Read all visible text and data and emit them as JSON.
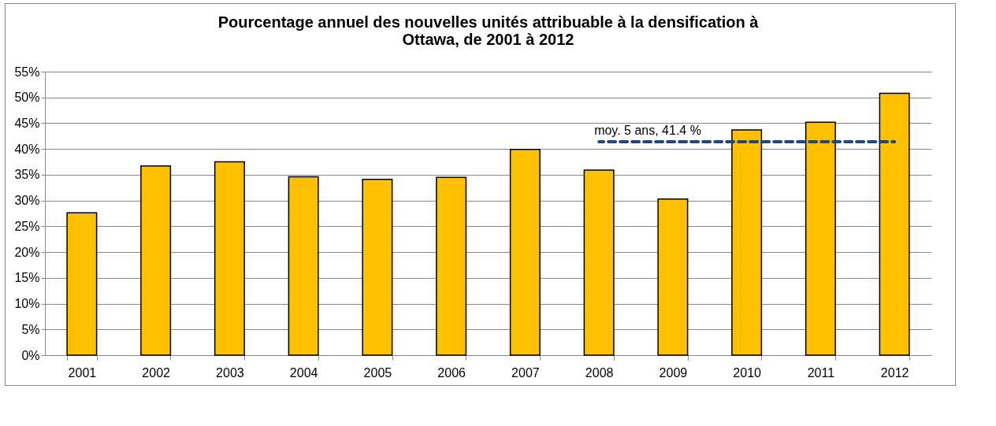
{
  "chart_data": {
    "type": "bar",
    "title": [
      "Pourcentage annuel des nouvelles unités attribuable à la densification à",
      "Ottawa, de 2001 à 2012"
    ],
    "categories": [
      "2001",
      "2002",
      "2003",
      "2004",
      "2005",
      "2006",
      "2007",
      "2008",
      "2009",
      "2010",
      "2011",
      "2012"
    ],
    "series": [
      {
        "color": "#ffc000",
        "values": [
          27.6,
          36.7,
          37.5,
          34.6,
          34.1,
          34.5,
          39.9,
          35.9,
          30.3,
          43.7,
          45.2,
          50.8
        ]
      },
      {
        "type": "line",
        "color": "#1f497d",
        "line_style": "dashed",
        "marker": "none",
        "values": [
          null,
          null,
          null,
          null,
          null,
          null,
          null,
          41.4,
          41.4,
          41.4,
          41.4,
          41.4
        ]
      }
    ],
    "annotations": [
      {
        "text": "moy. 5 ans, 41.4 %",
        "x": "2008",
        "y": 41.4
      }
    ],
    "ylim": [
      0,
      55
    ],
    "yticks": [
      {
        "value": 0,
        "label": "0%"
      },
      {
        "value": 5,
        "label": "5%"
      },
      {
        "value": 10,
        "label": "10%"
      },
      {
        "value": 15,
        "label": "15%"
      },
      {
        "value": 20,
        "label": "20%"
      },
      {
        "value": 25,
        "label": "25%"
      },
      {
        "value": 30,
        "label": "30%"
      },
      {
        "value": 35,
        "label": "35%"
      },
      {
        "value": 40,
        "label": "40%"
      },
      {
        "value": 45,
        "label": "45%"
      },
      {
        "value": 50,
        "label": "50%"
      },
      {
        "value": 55,
        "label": "55%"
      }
    ],
    "grid": "y"
  }
}
